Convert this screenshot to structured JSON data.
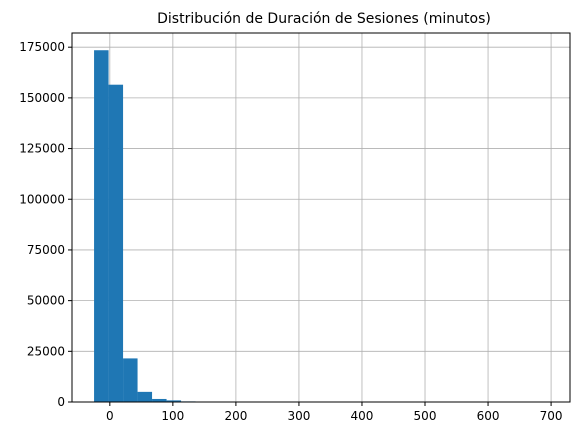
{
  "chart_data": {
    "type": "bar",
    "title": "Distribución de Duración de Sesiones (minutos)",
    "xlabel": "",
    "ylabel": "",
    "xlim": [
      -60,
      730
    ],
    "ylim": [
      0,
      182000
    ],
    "grid": true,
    "bar_color": "#1f77b4",
    "bin_edges": [
      -25,
      -2,
      21,
      44,
      67,
      90,
      113,
      136,
      159,
      182,
      205,
      228,
      251,
      274,
      297,
      320,
      343,
      366,
      389,
      412,
      435,
      458,
      481,
      504,
      527,
      550,
      573,
      596,
      619,
      642,
      665,
      688,
      711
    ],
    "values": [
      173500,
      156500,
      21500,
      5000,
      1500,
      800,
      300,
      150,
      80,
      50,
      30,
      20,
      15,
      10,
      8,
      6,
      5,
      4,
      3,
      3,
      2,
      2,
      2,
      1,
      1,
      1,
      1,
      1,
      1,
      1,
      1,
      1
    ],
    "x_ticks": [
      0,
      100,
      200,
      300,
      400,
      500,
      600,
      700
    ],
    "x_tick_labels": [
      "0",
      "100",
      "200",
      "300",
      "400",
      "500",
      "600",
      "700"
    ],
    "y_ticks": [
      0,
      25000,
      50000,
      75000,
      100000,
      125000,
      150000,
      175000
    ],
    "y_tick_labels": [
      "0",
      "25000",
      "50000",
      "75000",
      "100000",
      "125000",
      "150000",
      "175000"
    ]
  }
}
